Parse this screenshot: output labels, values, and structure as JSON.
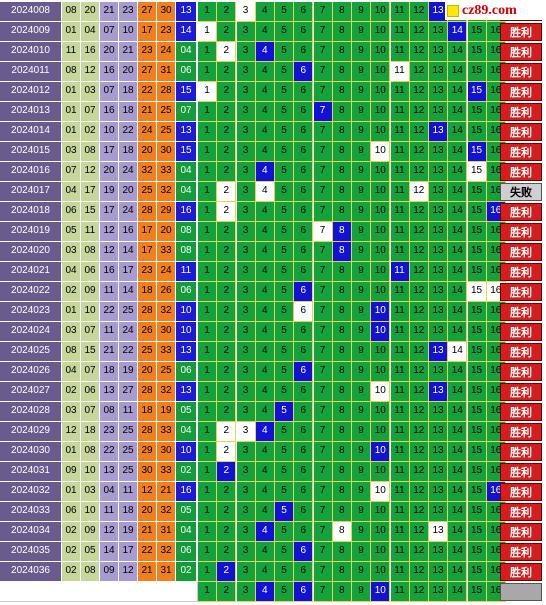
{
  "site_logo": "cz89.com",
  "colors": {
    "period_bg": "#6a5a8e",
    "col_a": "#c5d79b",
    "col_b": "#a79bd0",
    "col_c": "#f07f1d",
    "col_d": "#1b1bd8",
    "grid_green": "#13a23c",
    "hit_blue": "#1212d4",
    "win_red": "#d61c1c"
  },
  "grid_numbers": [
    "1",
    "2",
    "3",
    "4",
    "5",
    "6",
    "7",
    "8",
    "9",
    "10",
    "11",
    "12",
    "13",
    "14",
    "15",
    "16"
  ],
  "rows": [
    {
      "period": "2024008",
      "nums": [
        "08",
        "20",
        "21",
        "23",
        "27",
        "30"
      ],
      "blue": "13",
      "hits": [
        13
      ],
      "blanks": [
        3
      ],
      "result": "win"
    },
    {
      "period": "2024009",
      "nums": [
        "01",
        "04",
        "07",
        "10",
        "17",
        "23"
      ],
      "blue": "14",
      "hits": [
        14
      ],
      "blanks": [
        1
      ],
      "result": "胜利"
    },
    {
      "period": "2024010",
      "nums": [
        "11",
        "16",
        "20",
        "21",
        "23",
        "24"
      ],
      "blue": "04",
      "hits": [
        4
      ],
      "blanks": [
        2
      ],
      "result": "胜利"
    },
    {
      "period": "2024011",
      "nums": [
        "08",
        "12",
        "16",
        "20",
        "27",
        "31"
      ],
      "blue": "06",
      "hits": [
        6
      ],
      "blanks": [
        11
      ],
      "result": "胜利"
    },
    {
      "period": "2024012",
      "nums": [
        "01",
        "03",
        "07",
        "18",
        "22",
        "28"
      ],
      "blue": "15",
      "hits": [
        15
      ],
      "blanks": [
        1
      ],
      "result": "胜利"
    },
    {
      "period": "2024013",
      "nums": [
        "01",
        "07",
        "16",
        "18",
        "21",
        "25"
      ],
      "blue": "07",
      "hits": [
        7
      ],
      "blanks": [],
      "result": "胜利"
    },
    {
      "period": "2024014",
      "nums": [
        "01",
        "02",
        "10",
        "22",
        "24",
        "25"
      ],
      "blue": "13",
      "hits": [
        13
      ],
      "blanks": [],
      "result": "胜利"
    },
    {
      "period": "2024015",
      "nums": [
        "03",
        "08",
        "17",
        "18",
        "20",
        "30"
      ],
      "blue": "15",
      "hits": [
        15
      ],
      "blanks": [
        10
      ],
      "result": "胜利"
    },
    {
      "period": "2024016",
      "nums": [
        "07",
        "12",
        "20",
        "24",
        "32",
        "33"
      ],
      "blue": "04",
      "hits": [
        4
      ],
      "blanks": [
        15
      ],
      "result": "胜利"
    },
    {
      "period": "2024017",
      "nums": [
        "04",
        "17",
        "19",
        "20",
        "25",
        "32"
      ],
      "blue": "04",
      "hits": [],
      "blanks": [
        2,
        4,
        12
      ],
      "result": "失败"
    },
    {
      "period": "2024018",
      "nums": [
        "06",
        "15",
        "17",
        "24",
        "28",
        "29"
      ],
      "blue": "16",
      "hits": [
        16
      ],
      "blanks": [
        2
      ],
      "result": "胜利"
    },
    {
      "period": "2024019",
      "nums": [
        "05",
        "11",
        "12",
        "16",
        "17",
        "20"
      ],
      "blue": "08",
      "hits": [
        8
      ],
      "blanks": [
        7
      ],
      "result": "胜利"
    },
    {
      "period": "2024020",
      "nums": [
        "03",
        "08",
        "12",
        "14",
        "17",
        "33"
      ],
      "blue": "08",
      "hits": [
        8
      ],
      "blanks": [],
      "result": "胜利"
    },
    {
      "period": "2024021",
      "nums": [
        "04",
        "06",
        "16",
        "17",
        "23",
        "24"
      ],
      "blue": "11",
      "hits": [
        11
      ],
      "blanks": [],
      "result": "胜利"
    },
    {
      "period": "2024022",
      "nums": [
        "02",
        "09",
        "11",
        "14",
        "18",
        "26"
      ],
      "blue": "06",
      "hits": [
        6
      ],
      "blanks": [
        15,
        16
      ],
      "result": "胜利"
    },
    {
      "period": "2024023",
      "nums": [
        "01",
        "10",
        "22",
        "25",
        "28",
        "32"
      ],
      "blue": "10",
      "hits": [
        10
      ],
      "blanks": [
        6
      ],
      "result": "胜利"
    },
    {
      "period": "2024024",
      "nums": [
        "03",
        "07",
        "11",
        "24",
        "26",
        "30"
      ],
      "blue": "10",
      "hits": [
        10
      ],
      "blanks": [],
      "result": "胜利"
    },
    {
      "period": "2024025",
      "nums": [
        "08",
        "15",
        "21",
        "22",
        "25",
        "33"
      ],
      "blue": "13",
      "hits": [
        13
      ],
      "blanks": [
        14
      ],
      "result": "胜利"
    },
    {
      "period": "2024026",
      "nums": [
        "04",
        "07",
        "18",
        "19",
        "20",
        "25"
      ],
      "blue": "06",
      "hits": [
        6
      ],
      "blanks": [],
      "result": "胜利"
    },
    {
      "period": "2024027",
      "nums": [
        "02",
        "06",
        "13",
        "27",
        "28",
        "32"
      ],
      "blue": "13",
      "hits": [
        13
      ],
      "blanks": [
        10
      ],
      "result": "胜利"
    },
    {
      "period": "2024028",
      "nums": [
        "03",
        "07",
        "08",
        "11",
        "18",
        "19"
      ],
      "blue": "05",
      "hits": [
        5
      ],
      "blanks": [],
      "result": "胜利"
    },
    {
      "period": "2024029",
      "nums": [
        "12",
        "18",
        "23",
        "25",
        "28",
        "33"
      ],
      "blue": "04",
      "hits": [
        4
      ],
      "blanks": [
        2,
        3
      ],
      "result": "胜利"
    },
    {
      "period": "2024030",
      "nums": [
        "01",
        "08",
        "22",
        "25",
        "29",
        "30"
      ],
      "blue": "10",
      "hits": [
        10
      ],
      "blanks": [
        2
      ],
      "result": "胜利"
    },
    {
      "period": "2024031",
      "nums": [
        "09",
        "10",
        "13",
        "25",
        "30",
        "33"
      ],
      "blue": "02",
      "hits": [
        2
      ],
      "blanks": [],
      "result": "胜利"
    },
    {
      "period": "2024032",
      "nums": [
        "01",
        "03",
        "04",
        "11",
        "12",
        "21"
      ],
      "blue": "16",
      "hits": [
        16
      ],
      "blanks": [
        10
      ],
      "result": "胜利"
    },
    {
      "period": "2024033",
      "nums": [
        "06",
        "10",
        "11",
        "18",
        "20",
        "32"
      ],
      "blue": "05",
      "hits": [
        5
      ],
      "blanks": [],
      "result": "胜利"
    },
    {
      "period": "2024034",
      "nums": [
        "02",
        "09",
        "12",
        "19",
        "21",
        "31"
      ],
      "blue": "04",
      "hits": [
        4
      ],
      "blanks": [
        8,
        13
      ],
      "result": "胜利"
    },
    {
      "period": "2024035",
      "nums": [
        "02",
        "05",
        "14",
        "17",
        "22",
        "32"
      ],
      "blue": "06",
      "hits": [
        6
      ],
      "blanks": [],
      "result": "胜利"
    },
    {
      "period": "2024036",
      "nums": [
        "02",
        "08",
        "09",
        "12",
        "21",
        "31"
      ],
      "blue": "02",
      "hits": [
        2
      ],
      "blanks": [],
      "result": "胜利"
    },
    {
      "period": "",
      "nums": [
        "",
        "",
        "",
        "",
        "",
        ""
      ],
      "blue": "",
      "hits": [
        4,
        6,
        10
      ],
      "blanks": [],
      "result": "",
      "forecast": true
    }
  ]
}
